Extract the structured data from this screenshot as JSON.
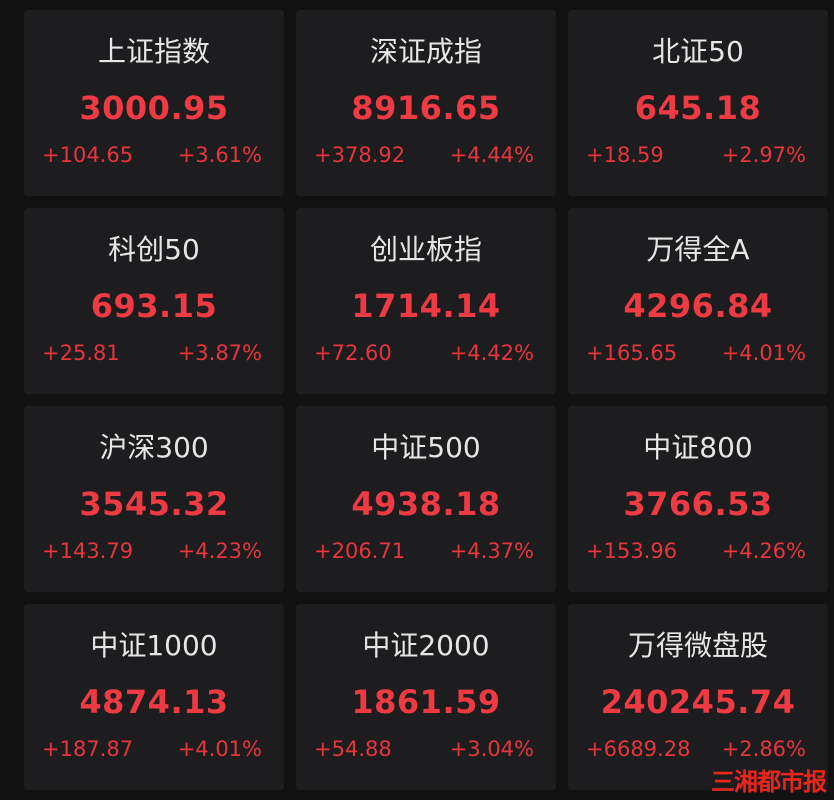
{
  "colors": {
    "up": "#ee3a43",
    "title": "#e6e6e6",
    "card": "#1d1d1f",
    "background": "#111112",
    "watermark": "#e8261c"
  },
  "indices": [
    {
      "name": "上证指数",
      "value": "3000.95",
      "change": "+104.65",
      "percent": "+3.61%"
    },
    {
      "name": "深证成指",
      "value": "8916.65",
      "change": "+378.92",
      "percent": "+4.44%"
    },
    {
      "name": "北证50",
      "value": "645.18",
      "change": "+18.59",
      "percent": "+2.97%"
    },
    {
      "name": "科创50",
      "value": "693.15",
      "change": "+25.81",
      "percent": "+3.87%"
    },
    {
      "name": "创业板指",
      "value": "1714.14",
      "change": "+72.60",
      "percent": "+4.42%"
    },
    {
      "name": "万得全A",
      "value": "4296.84",
      "change": "+165.65",
      "percent": "+4.01%"
    },
    {
      "name": "沪深300",
      "value": "3545.32",
      "change": "+143.79",
      "percent": "+4.23%"
    },
    {
      "name": "中证500",
      "value": "4938.18",
      "change": "+206.71",
      "percent": "+4.37%"
    },
    {
      "name": "中证800",
      "value": "3766.53",
      "change": "+153.96",
      "percent": "+4.26%"
    },
    {
      "name": "中证1000",
      "value": "4874.13",
      "change": "+187.87",
      "percent": "+4.01%"
    },
    {
      "name": "中证2000",
      "value": "1861.59",
      "change": "+54.88",
      "percent": "+3.04%"
    },
    {
      "name": "万得微盘股",
      "value": "240245.74",
      "change": "+6689.28",
      "percent": "+2.86%"
    }
  ],
  "watermark": "三湘都市报"
}
